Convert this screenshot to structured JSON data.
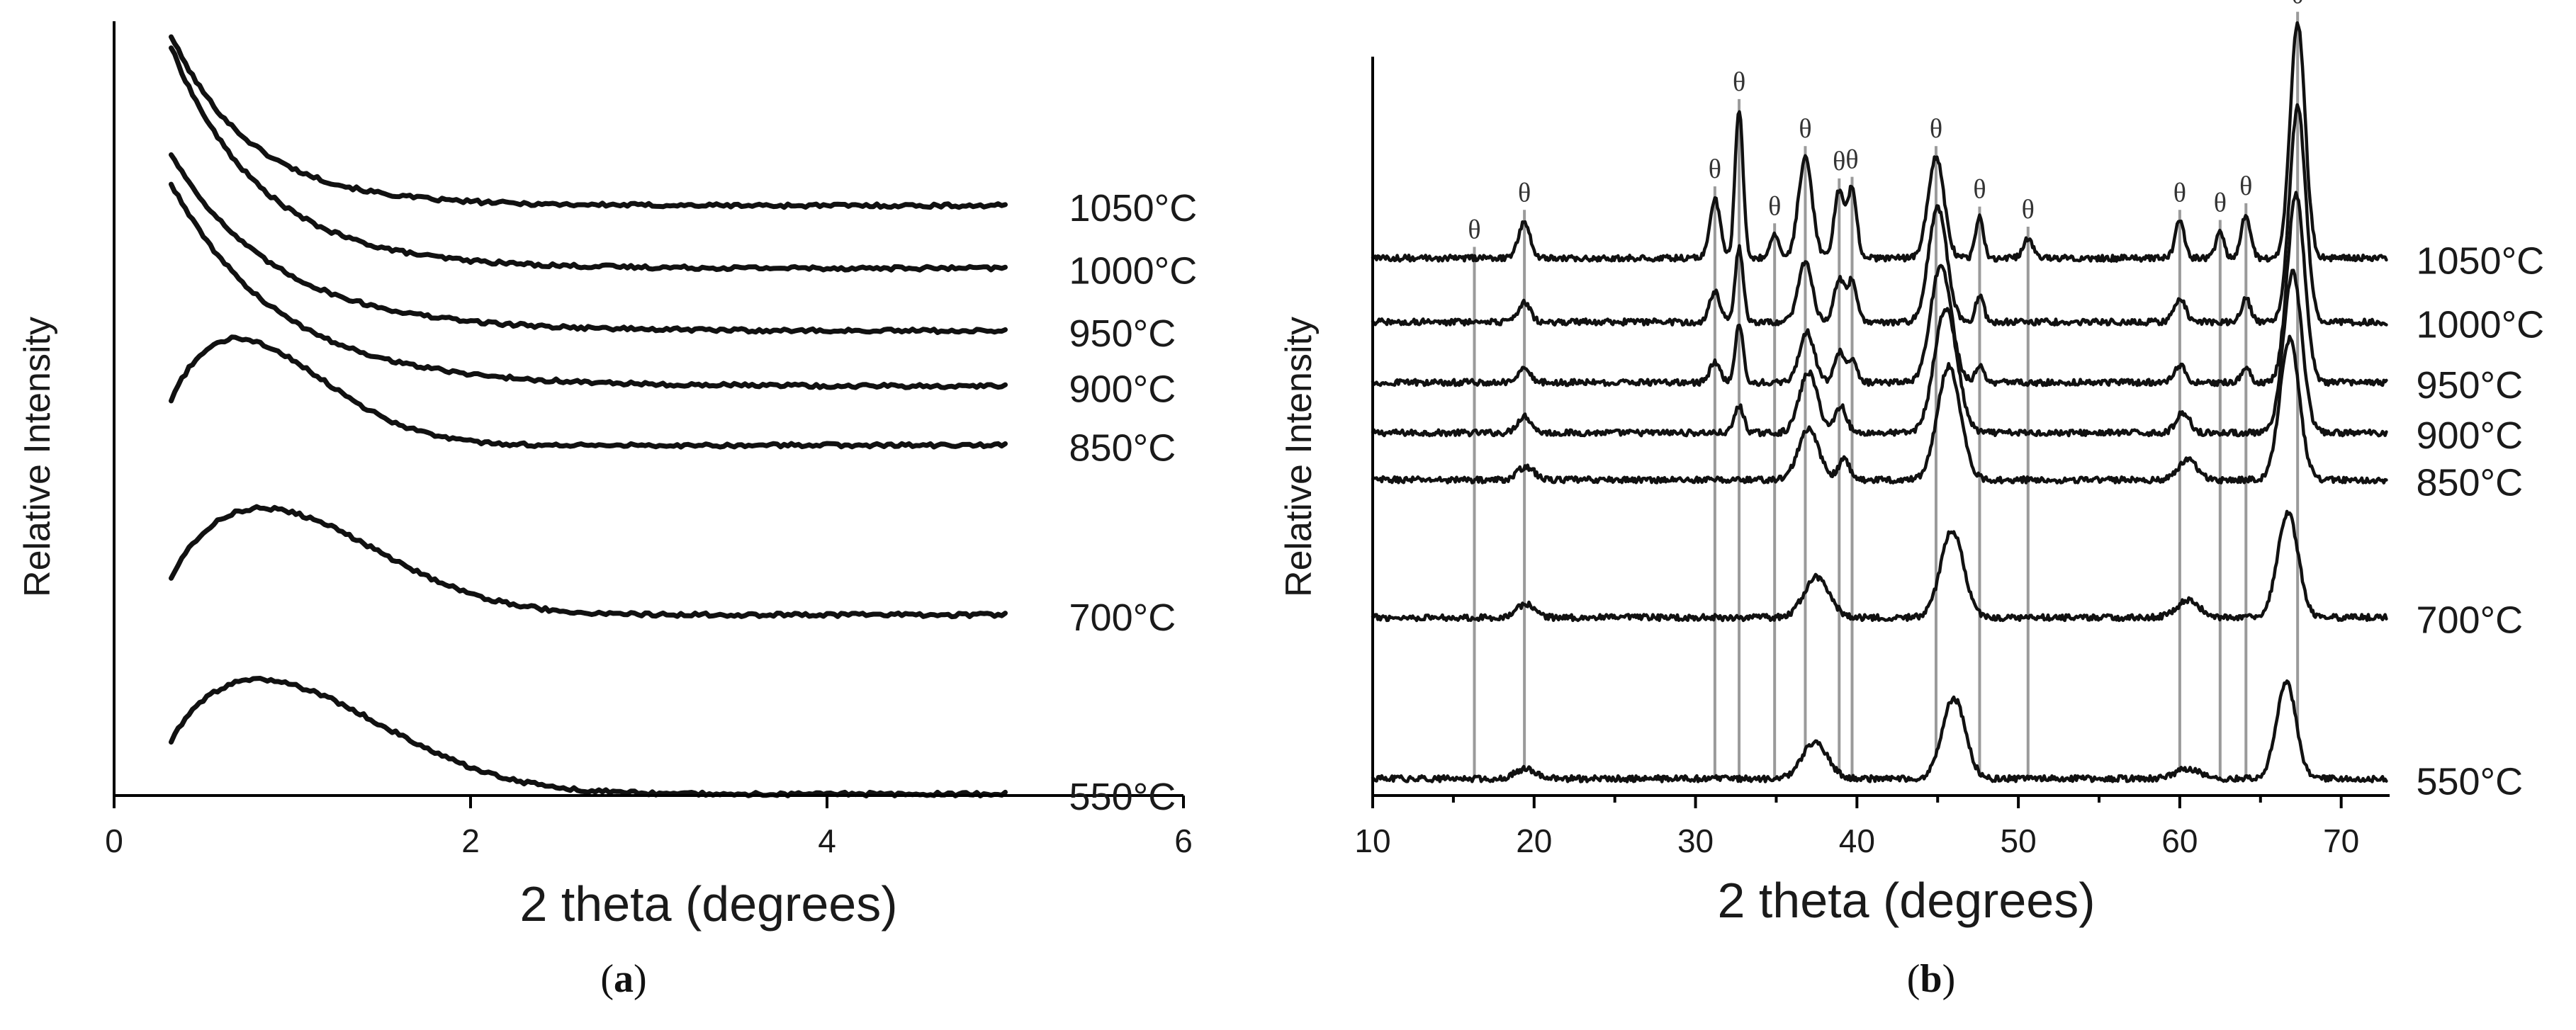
{
  "figure": {
    "captions": {
      "a": "a",
      "b": "b"
    }
  },
  "chart_data": [
    {
      "id": "a",
      "type": "line",
      "caption": "a",
      "xlabel": "2 theta (degrees)",
      "ylabel": "Relative Intensity",
      "xlim": [
        0,
        6
      ],
      "xticks": [
        0,
        2,
        4,
        6
      ],
      "ylim": [
        0,
        10.5
      ],
      "series": [
        {
          "name": "1050°C",
          "shape": "decay",
          "baseline": 8.0,
          "amp": 2.3,
          "decay": 0.45,
          "x": [
            0.32,
            5.0
          ]
        },
        {
          "name": "1000°C",
          "shape": "decay",
          "baseline": 7.15,
          "amp": 3.0,
          "decay": 0.5,
          "x": [
            0.32,
            5.0
          ]
        },
        {
          "name": "950°C",
          "shape": "decay",
          "baseline": 6.3,
          "amp": 2.4,
          "decay": 0.58,
          "x": [
            0.32,
            5.0
          ]
        },
        {
          "name": "900°C",
          "shape": "decay",
          "baseline": 5.55,
          "amp": 2.75,
          "decay": 0.6,
          "x": [
            0.32,
            5.0
          ]
        },
        {
          "name": "850°C",
          "shape": "hump",
          "baseline": 4.75,
          "amp": 1.45,
          "center": 0.65,
          "width": 0.55,
          "offset": -0.4,
          "x": [
            0.32,
            5.0
          ]
        },
        {
          "name": "700°C",
          "shape": "hump",
          "baseline": 2.45,
          "amp": 1.45,
          "center": 0.8,
          "width": 0.7,
          "offset": -0.4,
          "x": [
            0.32,
            5.0
          ]
        },
        {
          "name": "550°C",
          "shape": "hump",
          "baseline": 0.02,
          "amp": 1.55,
          "center": 0.78,
          "width": 0.75,
          "offset": -0.35,
          "x": [
            0.32,
            5.0
          ]
        }
      ]
    },
    {
      "id": "b",
      "type": "line",
      "caption": "b",
      "xlabel": "2 theta (degrees)",
      "ylabel": "Relative Intensity",
      "xlim": [
        10,
        73
      ],
      "xticks": [
        10,
        20,
        30,
        40,
        50,
        60,
        70
      ],
      "ylim": [
        0,
        11
      ],
      "marker_symbol": "θ",
      "markers": [
        16.3,
        19.4,
        31.2,
        32.7,
        34.9,
        36.8,
        38.9,
        39.7,
        44.9,
        47.6,
        50.6,
        60.0,
        62.5,
        64.1,
        67.3
      ],
      "series": [
        {
          "name": "1050°C",
          "baseline": 8.0,
          "peaks": [
            [
              19.4,
              0.55,
              0.5
            ],
            [
              31.2,
              0.9,
              0.45
            ],
            [
              32.7,
              2.2,
              0.35
            ],
            [
              34.9,
              0.35,
              0.4
            ],
            [
              36.8,
              1.5,
              0.6
            ],
            [
              38.9,
              1.0,
              0.45
            ],
            [
              39.7,
              1.0,
              0.4
            ],
            [
              44.9,
              1.5,
              0.7
            ],
            [
              47.6,
              0.6,
              0.35
            ],
            [
              50.6,
              0.3,
              0.4
            ],
            [
              60.0,
              0.55,
              0.4
            ],
            [
              62.5,
              0.4,
              0.35
            ],
            [
              64.1,
              0.65,
              0.4
            ],
            [
              67.3,
              3.5,
              0.65
            ]
          ]
        },
        {
          "name": "1000°C",
          "baseline": 7.05,
          "peaks": [
            [
              19.4,
              0.3,
              0.5
            ],
            [
              31.2,
              0.45,
              0.45
            ],
            [
              32.7,
              1.1,
              0.35
            ],
            [
              36.8,
              0.9,
              0.6
            ],
            [
              38.9,
              0.65,
              0.45
            ],
            [
              39.7,
              0.6,
              0.4
            ],
            [
              45.0,
              1.7,
              0.8
            ],
            [
              47.6,
              0.4,
              0.35
            ],
            [
              60.0,
              0.35,
              0.5
            ],
            [
              64.1,
              0.35,
              0.4
            ],
            [
              67.3,
              3.2,
              0.7
            ]
          ]
        },
        {
          "name": "950°C",
          "baseline": 6.15,
          "peaks": [
            [
              19.4,
              0.25,
              0.5
            ],
            [
              31.2,
              0.3,
              0.45
            ],
            [
              32.7,
              0.85,
              0.35
            ],
            [
              36.9,
              0.75,
              0.65
            ],
            [
              38.9,
              0.45,
              0.45
            ],
            [
              39.7,
              0.35,
              0.4
            ],
            [
              45.2,
              1.75,
              0.9
            ],
            [
              47.6,
              0.25,
              0.35
            ],
            [
              60.0,
              0.25,
              0.5
            ],
            [
              64.1,
              0.2,
              0.4
            ],
            [
              67.2,
              2.8,
              0.75
            ]
          ]
        },
        {
          "name": "900°C",
          "baseline": 5.4,
          "peaks": [
            [
              19.4,
              0.25,
              0.6
            ],
            [
              32.7,
              0.4,
              0.4
            ],
            [
              37.0,
              0.9,
              0.8
            ],
            [
              39.0,
              0.4,
              0.5
            ],
            [
              45.5,
              1.85,
              1.0
            ],
            [
              60.2,
              0.3,
              0.6
            ],
            [
              67.0,
              2.4,
              0.8
            ]
          ]
        },
        {
          "name": "850°C",
          "baseline": 4.7,
          "peaks": [
            [
              19.5,
              0.2,
              0.7
            ],
            [
              37.0,
              0.75,
              0.9
            ],
            [
              39.2,
              0.3,
              0.5
            ],
            [
              45.7,
              1.7,
              1.0
            ],
            [
              60.5,
              0.3,
              0.8
            ],
            [
              66.8,
              2.1,
              0.85
            ]
          ]
        },
        {
          "name": "700°C",
          "baseline": 2.65,
          "peaks": [
            [
              19.5,
              0.2,
              0.8
            ],
            [
              37.5,
              0.6,
              1.1
            ],
            [
              45.9,
              1.3,
              1.0
            ],
            [
              60.5,
              0.25,
              1.0
            ],
            [
              66.7,
              1.55,
              0.9
            ]
          ]
        },
        {
          "name": "550°C",
          "baseline": 0.25,
          "peaks": [
            [
              19.5,
              0.15,
              0.9
            ],
            [
              37.4,
              0.55,
              1.1
            ],
            [
              46.0,
              1.2,
              1.0
            ],
            [
              60.5,
              0.15,
              1.1
            ],
            [
              66.6,
              1.45,
              0.85
            ]
          ]
        }
      ]
    }
  ]
}
